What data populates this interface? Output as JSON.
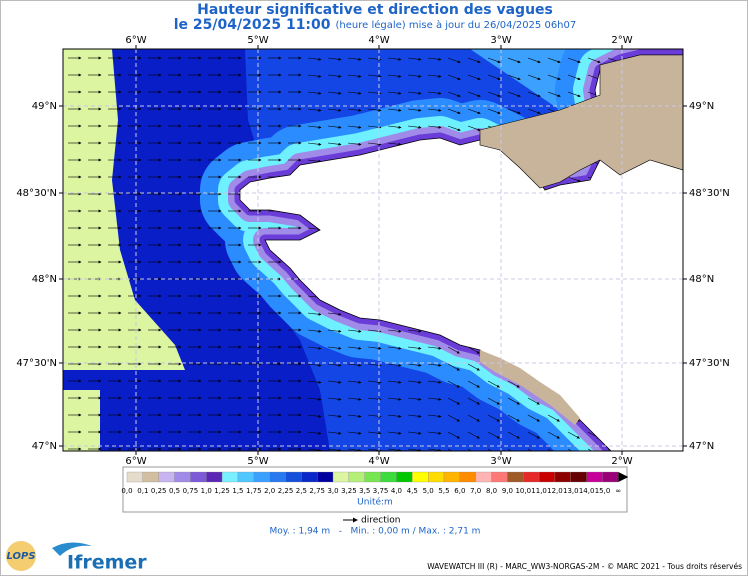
{
  "header": {
    "title": "Hauteur significative et direction des vagues",
    "date": "le 25/04/2025 11:00",
    "note": "(heure légale) mise à jour du 26/04/2025 06h07"
  },
  "map": {
    "longitude_labels": [
      "6°W",
      "5°W",
      "4°W",
      "3°W",
      "2°W"
    ],
    "latitude_labels": [
      "49°N",
      "48°30'N",
      "48°N",
      "47°30'N",
      "47°N"
    ]
  },
  "legend": {
    "labels": [
      "0,0",
      "0,1",
      "0,25",
      "0,5",
      "0,75",
      "1,0",
      "1,25",
      "1,5",
      "1,75",
      "2,0",
      "2,25",
      "2,5",
      "2,75",
      "3,0",
      "3,25",
      "3,5",
      "3,75",
      "4,0",
      "4,5",
      "5,0",
      "5,5",
      "6,0",
      "7,0",
      "8,0",
      "9,0",
      "10,0",
      "11,0",
      "12,0",
      "13,0",
      "14,0",
      "15,0",
      "∞"
    ],
    "colors": [
      "#e6dccc",
      "#d2bea0",
      "#c8b4f0",
      "#a08ce8",
      "#7c5ad8",
      "#5a28b4",
      "#78f0ff",
      "#50c8ff",
      "#3ca0ff",
      "#2878f0",
      "#1450dc",
      "#0a28c8",
      "#0000a0",
      "#dcf5a0",
      "#b4f078",
      "#78e650",
      "#3cdc3c",
      "#00c800",
      "#ffff00",
      "#ffdc00",
      "#ffb400",
      "#ff8c00",
      "#ffb4b4",
      "#ff7878",
      "#a05a28",
      "#e62828",
      "#c80000",
      "#8c0000",
      "#640000",
      "#c8009a",
      "#9a0078"
    ],
    "unit": "Unité:m",
    "direction": "direction"
  },
  "stats": "Moy. : 1,94 m   -   Min. : 0,00 m / Max. : 2,71 m",
  "footer": {
    "credit": "WAVEWATCH III (R) - MARC_WW3-NORGAS-2M - © MARC 2021 - Tous droits réservés",
    "logo_left": "LOPS",
    "logo_right": "Ifremer"
  }
}
